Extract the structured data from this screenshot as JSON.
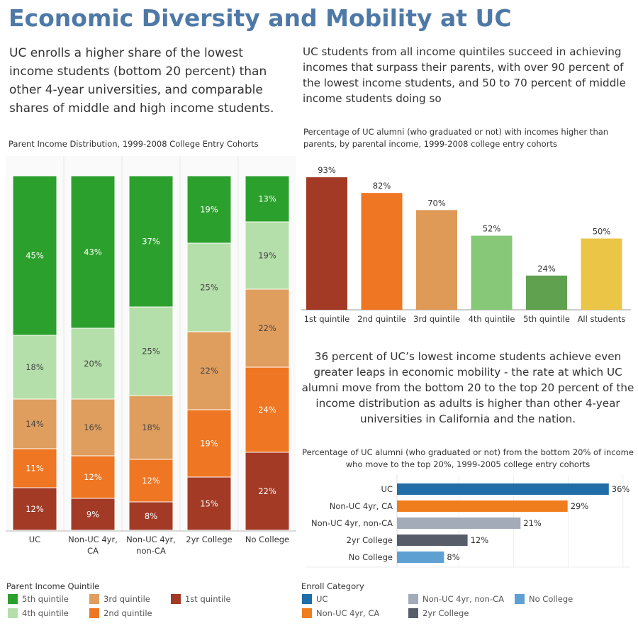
{
  "title": "Economic Diversity and Mobility at UC",
  "intro_left": "UC enrolls a higher share of the lowest income students (bottom 20 percent) than other 4-year universities, and comparable shares of middle and high income students.",
  "intro_right": "UC students from all income quintiles succeed in achieving incomes that surpass their parents, with over 90 percent of the lowest income students, and 50 to 70 percent of middle income students doing so",
  "mid_text": "36 percent of UC’s lowest income students achieve even greater leaps in economic mobility - the rate at which UC alumni move from the bottom 20 to the top 20 percent of the income distribution as adults is higher than other 4-year universities in California and the nation.",
  "colors": {
    "5th quintile": "#2ca02c",
    "4th quintile": "#b5dfaa",
    "3rd quintile": "#e09e5e",
    "2nd quintile": "#ef7622",
    "1st quintile": "#a23a26",
    "UC": "#1f6ea8",
    "Non-UC 4yr, CA": "#f07d1d",
    "Non-UC 4yr, non-CA": "#a3abb8",
    "2yr College": "#575d69",
    "No College": "#5fa0d2"
  },
  "chart_data": [
    {
      "id": "stacked",
      "type": "bar",
      "stacked": true,
      "title": "Parent Income Distribution, 1999-2008 College Entry Cohorts",
      "categories": [
        "UC",
        "Non-UC 4yr, CA",
        "Non-UC 4yr, non-CA",
        "2yr College",
        "No College"
      ],
      "category_lines": [
        [
          "UC"
        ],
        [
          "Non-UC 4yr,",
          "CA"
        ],
        [
          "Non-UC 4yr,",
          "non-CA"
        ],
        [
          "2yr College"
        ],
        [
          "No College"
        ]
      ],
      "series": [
        {
          "name": "1st quintile",
          "values": [
            12,
            9,
            8,
            15,
            22
          ]
        },
        {
          "name": "2nd quintile",
          "values": [
            11,
            12,
            12,
            19,
            24
          ]
        },
        {
          "name": "3rd quintile",
          "values": [
            14,
            16,
            18,
            22,
            22
          ]
        },
        {
          "name": "4th quintile",
          "values": [
            18,
            20,
            25,
            25,
            19
          ]
        },
        {
          "name": "5th quintile",
          "values": [
            45,
            43,
            37,
            19,
            13
          ]
        }
      ],
      "ylim": [
        0,
        100
      ],
      "value_suffix": "%"
    },
    {
      "id": "quintile_bars",
      "type": "bar",
      "title": "Percentage of UC alumni (who graduated or not) with incomes higher than parents, by parental income, 1999-2008 college entry cohorts",
      "categories": [
        "1st quintile",
        "2nd quintile",
        "3rd quintile",
        "4th quintile",
        "5th quintile",
        "All students"
      ],
      "values": [
        93,
        82,
        70,
        52,
        24,
        50
      ],
      "bar_colors": [
        "#a23a26",
        "#ef7622",
        "#df9a57",
        "#86c878",
        "#5fa14f",
        "#eac546"
      ],
      "ylim": [
        0,
        100
      ],
      "value_suffix": "%"
    },
    {
      "id": "horizontal",
      "type": "bar",
      "orientation": "horizontal",
      "title": "Percentage of UC alumni (who graduated or not) from the bottom 20% of income who move to the top 20%, 1999-2005 college entry cohorts",
      "categories": [
        "UC",
        "Non-UC 4yr, CA",
        "Non-UC 4yr, non-CA",
        "2yr College",
        "No College"
      ],
      "values": [
        36,
        29,
        21,
        12,
        8
      ],
      "xlim": [
        0,
        40
      ],
      "value_suffix": "%"
    }
  ],
  "legend_quintile": {
    "title": "Parent Income Quintile",
    "items": [
      "5th quintile",
      "4th quintile",
      "3rd quintile",
      "2nd quintile",
      "1st quintile"
    ]
  },
  "legend_enroll": {
    "title": "Enroll Category",
    "items": [
      "UC",
      "Non-UC 4yr, CA",
      "Non-UC 4yr, non-CA",
      "2yr College",
      "No College"
    ]
  }
}
